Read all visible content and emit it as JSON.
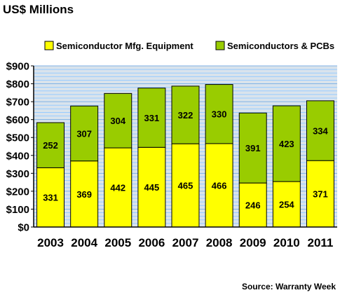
{
  "chart_data": {
    "type": "bar",
    "stacked": true,
    "title": "US$ Millions",
    "categories": [
      "2003",
      "2004",
      "2005",
      "2006",
      "2007",
      "2008",
      "2009",
      "2010",
      "2011"
    ],
    "series": [
      {
        "name": "Semiconductor Mfg. Equipment",
        "color": "#FFFF00",
        "values": [
          331,
          369,
          442,
          445,
          465,
          466,
          246,
          254,
          371
        ]
      },
      {
        "name": "Semiconductors & PCBs",
        "color": "#99CC00",
        "values": [
          252,
          307,
          304,
          331,
          322,
          330,
          391,
          423,
          334
        ]
      }
    ],
    "ylim": [
      0,
      900
    ],
    "yticks": [
      0,
      100,
      200,
      300,
      400,
      500,
      600,
      700,
      800,
      900
    ],
    "ytick_labels": [
      "$0",
      "$100",
      "$200",
      "$300",
      "$400",
      "$500",
      "$600",
      "$700",
      "$800",
      "$900"
    ],
    "grid": true,
    "grid_color": "#99CCFF",
    "plot_background": "#D9E3EC",
    "legend_position": "top",
    "source": "Source: Warranty Week"
  }
}
